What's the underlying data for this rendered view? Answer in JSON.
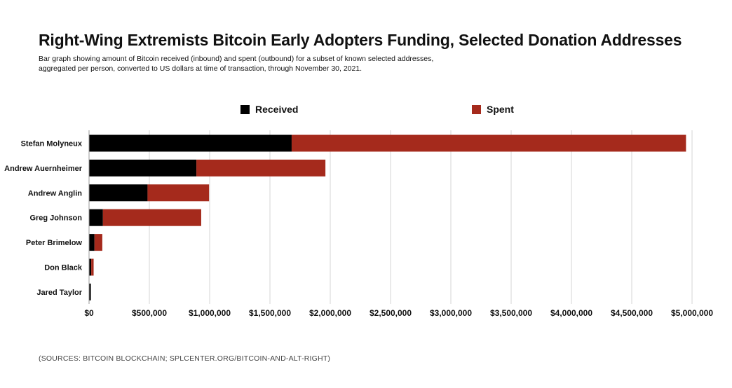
{
  "chart_data": {
    "type": "bar",
    "orientation": "horizontal",
    "stacked": true,
    "title": "Right-Wing Extremists Bitcoin Early Adopters Funding, Selected Donation Addresses",
    "subtitle_lines": [
      "Bar graph showing amount of Bitcoin received (inbound) and spent (outbound) for a subset of known selected addresses,",
      "aggregated per person, converted to US dollars at time of transaction, through November 30, 2021."
    ],
    "categories": [
      "Stefan Molyneux",
      "Andrew Auernheimer",
      "Andrew Anglin",
      "Greg Johnson",
      "Peter Brimelow",
      "Don Black",
      "Jared Taylor"
    ],
    "series": [
      {
        "name": "Received",
        "color": "#000000",
        "values": [
          1680000,
          890000,
          485000,
          115000,
          45000,
          18000,
          15000
        ]
      },
      {
        "name": "Spent",
        "color": "#a52a1c",
        "values": [
          3270000,
          1070000,
          510000,
          815000,
          65000,
          20000,
          0
        ]
      }
    ],
    "xlim": [
      0,
      5000000
    ],
    "xticks": [
      0,
      500000,
      1000000,
      1500000,
      2000000,
      2500000,
      3000000,
      3500000,
      4000000,
      4500000,
      5000000
    ],
    "xtick_labels": [
      "$0",
      "$500,000",
      "$1,000,000",
      "$1,500,000",
      "$2,000,000",
      "$2,500,000",
      "$3,000,000",
      "$3,500,000",
      "$4,000,000",
      "$4,500,000",
      "$5,000,000"
    ],
    "grid": "vertical",
    "legend_position": "top"
  },
  "source": "(SOURCES: BITCOIN BLOCKCHAIN; SPLCENTER.ORG/BITCOIN-AND-ALT-RIGHT)"
}
